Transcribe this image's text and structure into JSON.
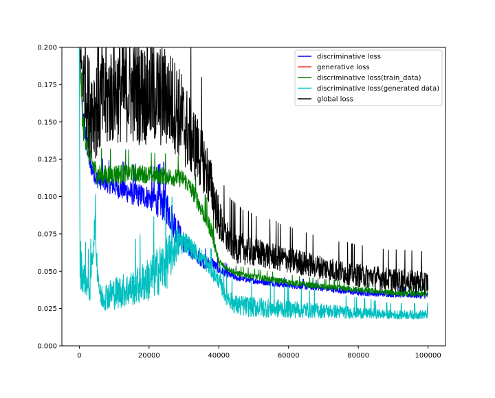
{
  "chart_data": {
    "type": "line",
    "title": "",
    "xlabel": "",
    "ylabel": "",
    "xlim": [
      -5000,
      105000
    ],
    "ylim": [
      0.0,
      0.2
    ],
    "xticks": [
      0,
      20000,
      40000,
      60000,
      80000,
      100000
    ],
    "xtick_labels": [
      "0",
      "20000",
      "40000",
      "60000",
      "80000",
      "100000"
    ],
    "yticks": [
      0.0,
      0.025,
      0.05,
      0.075,
      0.1,
      0.125,
      0.15,
      0.175,
      0.2
    ],
    "ytick_labels": [
      "0.000",
      "0.025",
      "0.050",
      "0.075",
      "0.100",
      "0.125",
      "0.150",
      "0.175",
      "0.200"
    ],
    "grid": false,
    "legend_position": "top-right",
    "series": [
      {
        "name": "discriminative loss",
        "color": "#0000ff",
        "x": [
          0,
          1000,
          2000,
          3000,
          5000,
          8000,
          10000,
          15000,
          20000,
          25000,
          28000,
          30000,
          33000,
          36000,
          38000,
          40000,
          45000,
          50000,
          60000,
          70000,
          80000,
          90000,
          100000
        ],
        "y": [
          0.2,
          0.15,
          0.135,
          0.12,
          0.11,
          0.107,
          0.105,
          0.1,
          0.097,
          0.09,
          0.075,
          0.066,
          0.06,
          0.054,
          0.055,
          0.05,
          0.045,
          0.043,
          0.04,
          0.038,
          0.035,
          0.034,
          0.033
        ],
        "noise": [
          0.0,
          0.01,
          0.008,
          0.006,
          0.006,
          0.006,
          0.007,
          0.008,
          0.008,
          0.012,
          0.01,
          0.006,
          0.005,
          0.004,
          0.004,
          0.003,
          0.002,
          0.002,
          0.002,
          0.002,
          0.002,
          0.002,
          0.002
        ]
      },
      {
        "name": "generative loss",
        "color": "#ff0000",
        "x": [],
        "y": [],
        "noise": []
      },
      {
        "name": "discriminative loss(train_data)",
        "color": "#008000",
        "x": [
          0,
          1000,
          2000,
          3000,
          5000,
          8000,
          10000,
          15000,
          20000,
          25000,
          30000,
          33000,
          36000,
          38000,
          40000,
          42000,
          45000,
          50000,
          60000,
          70000,
          80000,
          90000,
          100000
        ],
        "y": [
          0.2,
          0.145,
          0.135,
          0.125,
          0.113,
          0.112,
          0.113,
          0.114,
          0.113,
          0.112,
          0.11,
          0.1,
          0.085,
          0.075,
          0.055,
          0.052,
          0.048,
          0.046,
          0.042,
          0.039,
          0.037,
          0.035,
          0.034
        ],
        "noise": [
          0.0,
          0.01,
          0.008,
          0.007,
          0.007,
          0.007,
          0.007,
          0.006,
          0.006,
          0.006,
          0.006,
          0.006,
          0.006,
          0.006,
          0.003,
          0.002,
          0.002,
          0.002,
          0.002,
          0.002,
          0.002,
          0.002,
          0.002
        ]
      },
      {
        "name": "discriminative loss(generated data)",
        "color": "#00bfbf",
        "x": [
          0,
          200,
          800,
          2000,
          3000,
          4500,
          5000,
          6000,
          8000,
          10000,
          15000,
          20000,
          25000,
          28000,
          30000,
          33000,
          36000,
          40000,
          42000,
          45000,
          50000,
          60000,
          70000,
          80000,
          90000,
          100000
        ],
        "y": [
          0.2,
          0.05,
          0.045,
          0.04,
          0.035,
          0.08,
          0.055,
          0.03,
          0.031,
          0.032,
          0.035,
          0.04,
          0.05,
          0.065,
          0.068,
          0.062,
          0.055,
          0.042,
          0.032,
          0.025,
          0.024,
          0.023,
          0.022,
          0.021,
          0.02,
          0.02
        ],
        "noise": [
          0.0,
          0.02,
          0.012,
          0.01,
          0.01,
          0.01,
          0.01,
          0.009,
          0.01,
          0.011,
          0.012,
          0.015,
          0.018,
          0.012,
          0.008,
          0.006,
          0.006,
          0.005,
          0.006,
          0.007,
          0.007,
          0.006,
          0.005,
          0.004,
          0.003,
          0.003
        ]
      },
      {
        "name": "global loss",
        "color": "#000000",
        "x": [
          0,
          1000,
          2000,
          3000,
          5000,
          8000,
          10000,
          15000,
          20000,
          25000,
          28000,
          30000,
          33000,
          36000,
          38000,
          40000,
          42000,
          45000,
          50000,
          60000,
          70000,
          80000,
          90000,
          100000
        ],
        "y": [
          0.2,
          0.175,
          0.16,
          0.15,
          0.15,
          0.155,
          0.16,
          0.16,
          0.158,
          0.156,
          0.15,
          0.14,
          0.128,
          0.115,
          0.1,
          0.08,
          0.07,
          0.063,
          0.06,
          0.055,
          0.05,
          0.045,
          0.042,
          0.04
        ],
        "noise": [
          0.0,
          0.025,
          0.03,
          0.035,
          0.035,
          0.035,
          0.035,
          0.035,
          0.035,
          0.035,
          0.032,
          0.03,
          0.025,
          0.02,
          0.018,
          0.015,
          0.012,
          0.011,
          0.01,
          0.009,
          0.008,
          0.008,
          0.008,
          0.008
        ]
      }
    ]
  }
}
